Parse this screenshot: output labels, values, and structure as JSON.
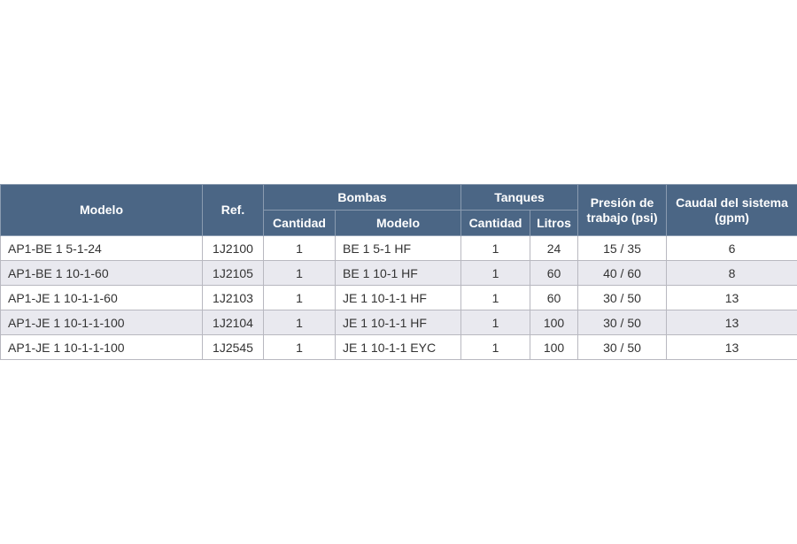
{
  "table": {
    "header": {
      "top": [
        "Modelo",
        "Ref.",
        "Bombas",
        "Tanques",
        "Presión de trabajo (psi)",
        "Caudal del sistema (gpm)"
      ],
      "sub": [
        "Cantidad",
        "Modelo",
        "Cantidad",
        "Litros"
      ]
    },
    "rows": [
      [
        "AP1-BE 1 5-1-24",
        "1J2100",
        "1",
        "BE 1 5-1 HF",
        "1",
        "24",
        "15 / 35",
        "6"
      ],
      [
        "AP1-BE 1 10-1-60",
        "1J2105",
        "1",
        "BE 1 10-1 HF",
        "1",
        "60",
        "40 / 60",
        "8"
      ],
      [
        "AP1-JE 1 10-1-1-60",
        "1J2103",
        "1",
        "JE 1 10-1-1 HF",
        "1",
        "60",
        "30 / 50",
        "13"
      ],
      [
        "AP1-JE 1 10-1-1-100",
        "1J2104",
        "1",
        "JE 1 10-1-1 HF",
        "1",
        "100",
        "30 / 50",
        "13"
      ],
      [
        "AP1-JE 1 10-1-1-100",
        "1J2545",
        "1",
        "JE 1 10-1-1 EYC",
        "1",
        "100",
        "30 / 50",
        "13"
      ]
    ]
  }
}
